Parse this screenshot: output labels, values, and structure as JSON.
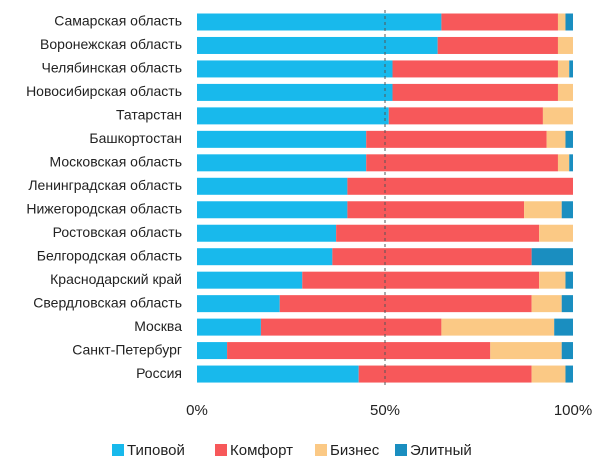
{
  "chart_data": {
    "type": "stacked_barh",
    "categories": [
      "Самарская область",
      "Воронежская область",
      "Челябинская область",
      "Новосибирская область",
      "Татарстан",
      "Башкортостан",
      "Московская область",
      "Ленинградская область",
      "Нижегородская область",
      "Ростовская область",
      "Белгородская область",
      "Краснодарский край",
      "Свердловская область",
      "Москва",
      "Санкт-Петербург",
      "Россия"
    ],
    "series": [
      {
        "name": "Типовой",
        "color": "#18b9ec",
        "values": [
          65,
          64,
          52,
          52,
          51,
          45,
          45,
          40,
          40,
          37,
          36,
          28,
          22,
          17,
          8,
          43
        ]
      },
      {
        "name": "Комфорт",
        "color": "#f7585a",
        "values": [
          31,
          32,
          44,
          44,
          41,
          48,
          51,
          60,
          47,
          54,
          53,
          63,
          67,
          48,
          70,
          46
        ]
      },
      {
        "name": "Бизнес",
        "color": "#fbc985",
        "values": [
          2,
          4,
          3,
          4,
          8,
          5,
          3,
          0,
          10,
          9,
          0,
          7,
          8,
          30,
          19,
          9
        ]
      },
      {
        "name": "Элитный",
        "color": "#1a8ec0",
        "values": [
          2,
          0,
          1,
          0,
          0,
          2,
          1,
          0,
          3,
          0,
          11,
          2,
          3,
          5,
          3,
          2
        ]
      }
    ],
    "xlim": [
      0,
      100
    ],
    "xticks": [
      {
        "value": 0,
        "label": "0%"
      },
      {
        "value": 50,
        "label": "50%"
      },
      {
        "value": 100,
        "label": "100%"
      }
    ],
    "grid": true,
    "legend": "bottom"
  }
}
